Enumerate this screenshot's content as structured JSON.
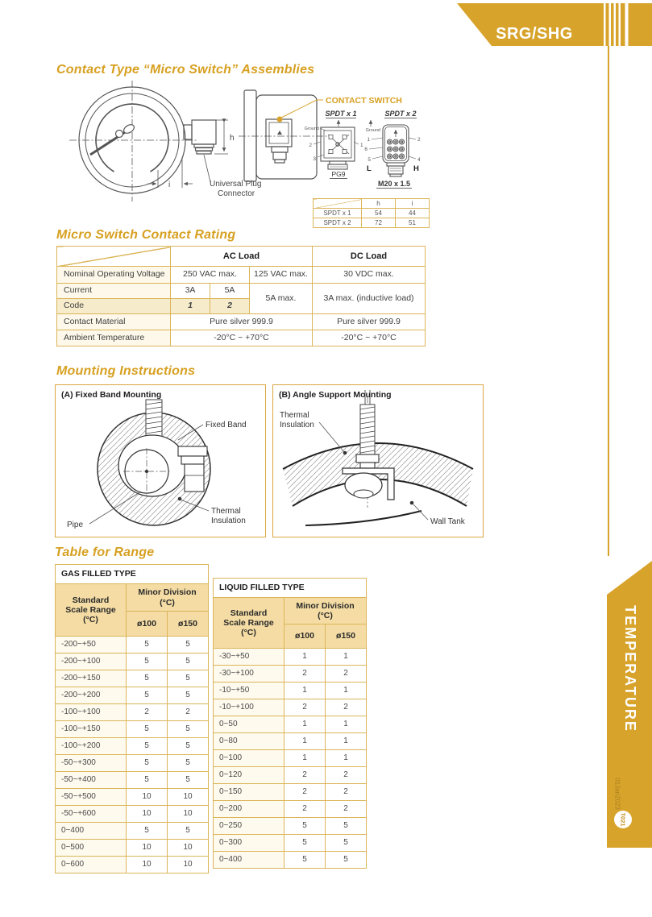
{
  "banner": {
    "model": "SRG/SHG",
    "gold": "#d7a32a"
  },
  "side": {
    "tab": "TEMPERATURE",
    "date": "01Jan2023",
    "page": "T021"
  },
  "assemblies": {
    "title": "Contact Type “Micro Switch” Assemblies",
    "contact_switch": "CONTACT SWITCH",
    "spdt1": "SPDT x 1",
    "spdt2": "SPDT x 2",
    "ground1": "Ground",
    "ground2": "Ground",
    "pg9": "PG9",
    "m20": "M20 x 1.5",
    "l_label": "L",
    "h_pin_label": "H",
    "dim_h": "h",
    "dim_i": "i",
    "plug_line1": "Universal Plug",
    "plug_line2": "Connector",
    "pins1": [
      "1",
      "2",
      "3"
    ],
    "pins2": [
      "1",
      "6",
      "5",
      "2",
      "4"
    ],
    "hi_table": {
      "col_h": "h",
      "col_i": "i",
      "rows": [
        {
          "label": "SPDT x 1",
          "h": "54",
          "i": "44"
        },
        {
          "label": "SPDT x 2",
          "h": "72",
          "i": "51"
        }
      ]
    }
  },
  "rating": {
    "title": "Micro Switch Contact Rating",
    "ac_load": "AC Load",
    "dc_load": "DC Load",
    "voltage_label": "Nominal Operating Voltage",
    "voltage_ac1": "250 VAC max.",
    "voltage_ac2": "125 VAC max.",
    "voltage_dc": "30 VDC max.",
    "current_label": "Current",
    "current_3a": "3A",
    "current_5a": "5A",
    "current_ac2": "5A max.",
    "current_dc": "3A max. (inductive load)",
    "code_label": "Code",
    "code_1": "1",
    "code_2": "2",
    "material_label": "Contact Material",
    "material_ac": "Pure silver 999.9",
    "material_dc": "Pure silver 999.9",
    "ambient_label": "Ambient Temperature",
    "ambient_ac": "-20°C ~ +70°C",
    "ambient_dc": "-20°C ~ +70°C"
  },
  "mounting": {
    "title": "Mounting Instructions",
    "box_a_title": "(A) Fixed Band Mounting",
    "box_b_title": "(B) Angle Support Mounting",
    "fixed_band": "Fixed Band",
    "thermal_a1": "Thermal",
    "thermal_a2": "Insulation",
    "pipe": "Pipe",
    "thermal_b1": "Thermal",
    "thermal_b2": "Insulation",
    "wall_tank": "Wall Tank"
  },
  "range": {
    "title": "Table for Range",
    "gas": {
      "type_header": "GAS FILLED TYPE",
      "col1_header": "Standard Scale Range (°C)",
      "minor_header": "Minor Division (°C)",
      "d100": "ø100",
      "d150": "ø150",
      "rows": [
        [
          "-200~+50",
          "5",
          "5"
        ],
        [
          "-200~+100",
          "5",
          "5"
        ],
        [
          "-200~+150",
          "5",
          "5"
        ],
        [
          "-200~+200",
          "5",
          "5"
        ],
        [
          "-100~+100",
          "2",
          "2"
        ],
        [
          "-100~+150",
          "5",
          "5"
        ],
        [
          "-100~+200",
          "5",
          "5"
        ],
        [
          "-50~+300",
          "5",
          "5"
        ],
        [
          "-50~+400",
          "5",
          "5"
        ],
        [
          "-50~+500",
          "10",
          "10"
        ],
        [
          "-50~+600",
          "10",
          "10"
        ],
        [
          "0~400",
          "5",
          "5"
        ],
        [
          "0~500",
          "10",
          "10"
        ],
        [
          "0~600",
          "10",
          "10"
        ]
      ]
    },
    "liquid": {
      "type_header": "LIQUID FILLED TYPE",
      "col1_header": "Standard Scale Range (°C)",
      "minor_header": "Minor Division (°C)",
      "d100": "ø100",
      "d150": "ø150",
      "rows": [
        [
          "-30~+50",
          "1",
          "1"
        ],
        [
          "-30~+100",
          "2",
          "2"
        ],
        [
          "-10~+50",
          "1",
          "1"
        ],
        [
          "-10~+100",
          "2",
          "2"
        ],
        [
          "0~50",
          "1",
          "1"
        ],
        [
          "0~80",
          "1",
          "1"
        ],
        [
          "0~100",
          "1",
          "1"
        ],
        [
          "0~120",
          "2",
          "2"
        ],
        [
          "0~150",
          "2",
          "2"
        ],
        [
          "0~200",
          "2",
          "2"
        ],
        [
          "0~250",
          "5",
          "5"
        ],
        [
          "0~300",
          "5",
          "5"
        ],
        [
          "0~400",
          "5",
          "5"
        ]
      ]
    }
  }
}
